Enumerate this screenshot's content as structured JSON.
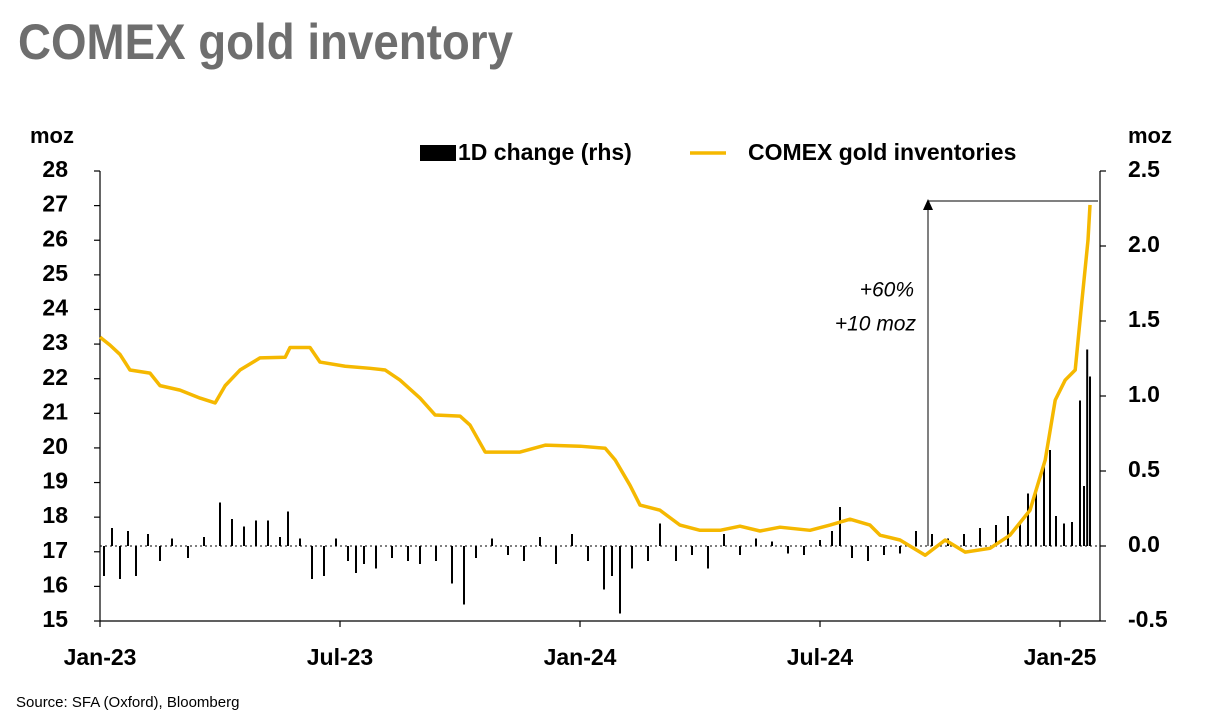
{
  "chart_data": {
    "type": "bar-line",
    "title": "COMEX gold inventory",
    "source": "Source: SFA (Oxford), Bloomberg",
    "y_label": "moz",
    "y2_label": "moz",
    "annotations": [
      "+60%",
      "+10 moz"
    ],
    "xlim": [
      0,
      25
    ],
    "xticks": [
      {
        "value": 0,
        "label": "Jan-23"
      },
      {
        "value": 6,
        "label": "Jul-23"
      },
      {
        "value": 12,
        "label": "Jan-24"
      },
      {
        "value": 18,
        "label": "Jul-24"
      },
      {
        "value": 24,
        "label": "Jan-25"
      }
    ],
    "ylim": [
      15,
      28
    ],
    "yticks": [
      15,
      16,
      17,
      18,
      19,
      20,
      21,
      22,
      23,
      24,
      25,
      26,
      27,
      28
    ],
    "y2lim": [
      -0.5,
      2.5
    ],
    "y2ticks": [
      -0.5,
      {
        "value": 0,
        "label": "0.0"
      },
      0.5,
      {
        "value": 1,
        "label": "1.0"
      },
      1.5,
      {
        "value": 2,
        "label": "2.0"
      },
      2.5
    ],
    "series": [
      {
        "name": "1D change (rhs)",
        "type": "bar",
        "axis": "y2",
        "color": "#000000",
        "x": [
          0.1,
          0.3,
          0.5,
          0.7,
          0.9,
          1.2,
          1.5,
          1.8,
          2.2,
          2.6,
          3.0,
          3.3,
          3.6,
          3.9,
          4.2,
          4.5,
          4.7,
          5.0,
          5.3,
          5.6,
          5.9,
          6.2,
          6.4,
          6.6,
          6.9,
          7.3,
          7.7,
          8.0,
          8.4,
          8.8,
          9.1,
          9.4,
          9.8,
          10.2,
          10.6,
          11.0,
          11.4,
          11.8,
          12.2,
          12.6,
          12.8,
          13.0,
          13.3,
          13.7,
          14.0,
          14.4,
          14.8,
          15.2,
          15.6,
          16.0,
          16.4,
          16.8,
          17.2,
          17.6,
          18.0,
          18.3,
          18.5,
          18.8,
          19.2,
          19.6,
          20.0,
          20.4,
          20.8,
          21.2,
          21.6,
          22.0,
          22.4,
          22.7,
          23.0,
          23.2,
          23.4,
          23.6,
          23.75,
          23.9,
          24.1,
          24.3,
          24.5,
          24.6,
          24.68,
          24.75
        ],
        "values": [
          -0.2,
          0.12,
          -0.22,
          0.1,
          -0.2,
          0.08,
          -0.1,
          0.05,
          -0.08,
          0.06,
          0.29,
          0.18,
          0.13,
          0.17,
          0.17,
          0.06,
          0.23,
          0.05,
          -0.22,
          -0.2,
          0.05,
          -0.1,
          -0.18,
          -0.12,
          -0.15,
          -0.08,
          -0.1,
          -0.12,
          -0.1,
          -0.25,
          -0.39,
          -0.08,
          0.05,
          -0.06,
          -0.1,
          0.06,
          -0.12,
          0.08,
          -0.1,
          -0.29,
          -0.2,
          -0.45,
          -0.15,
          -0.1,
          0.15,
          -0.1,
          -0.06,
          -0.15,
          0.08,
          -0.06,
          0.05,
          0.03,
          -0.05,
          -0.06,
          0.04,
          0.1,
          0.26,
          -0.08,
          -0.1,
          -0.06,
          -0.05,
          0.1,
          0.08,
          0.05,
          0.08,
          0.12,
          0.14,
          0.2,
          0.15,
          0.35,
          0.37,
          0.55,
          0.64,
          0.2,
          0.15,
          0.16,
          0.97,
          0.4,
          1.31,
          1.13
        ]
      },
      {
        "name": "COMEX gold inventories",
        "type": "line",
        "color": "#f5b800",
        "x": [
          0,
          0.25,
          0.5,
          0.75,
          1.25,
          1.5,
          2.0,
          2.5,
          2.88,
          3.13,
          3.5,
          4.0,
          4.63,
          4.75,
          5.25,
          5.5,
          6.13,
          6.75,
          7.13,
          7.5,
          8.0,
          8.38,
          9.0,
          9.25,
          9.63,
          10.5,
          11.13,
          12.0,
          12.63,
          12.88,
          13.25,
          13.5,
          14.0,
          14.5,
          15.0,
          15.5,
          16.0,
          16.5,
          17.0,
          17.75,
          18.25,
          18.75,
          19.25,
          19.5,
          20.0,
          20.63,
          21.13,
          21.63,
          22.25,
          22.75,
          23.25,
          23.63,
          23.88,
          24.13,
          24.38,
          24.55,
          24.7,
          24.75
        ],
        "values": [
          23.2,
          22.97,
          22.7,
          22.25,
          22.16,
          21.8,
          21.67,
          21.44,
          21.3,
          21.8,
          22.25,
          22.6,
          22.62,
          22.9,
          22.9,
          22.48,
          22.36,
          22.3,
          22.25,
          21.96,
          21.44,
          20.95,
          20.92,
          20.66,
          19.88,
          19.88,
          20.08,
          20.05,
          19.99,
          19.65,
          18.92,
          18.35,
          18.2,
          17.77,
          17.62,
          17.62,
          17.74,
          17.6,
          17.71,
          17.62,
          17.77,
          17.94,
          17.77,
          17.48,
          17.34,
          16.9,
          17.34,
          16.99,
          17.1,
          17.48,
          18.2,
          19.65,
          21.38,
          21.96,
          22.25,
          24.27,
          26.0,
          27.02
        ]
      }
    ]
  }
}
